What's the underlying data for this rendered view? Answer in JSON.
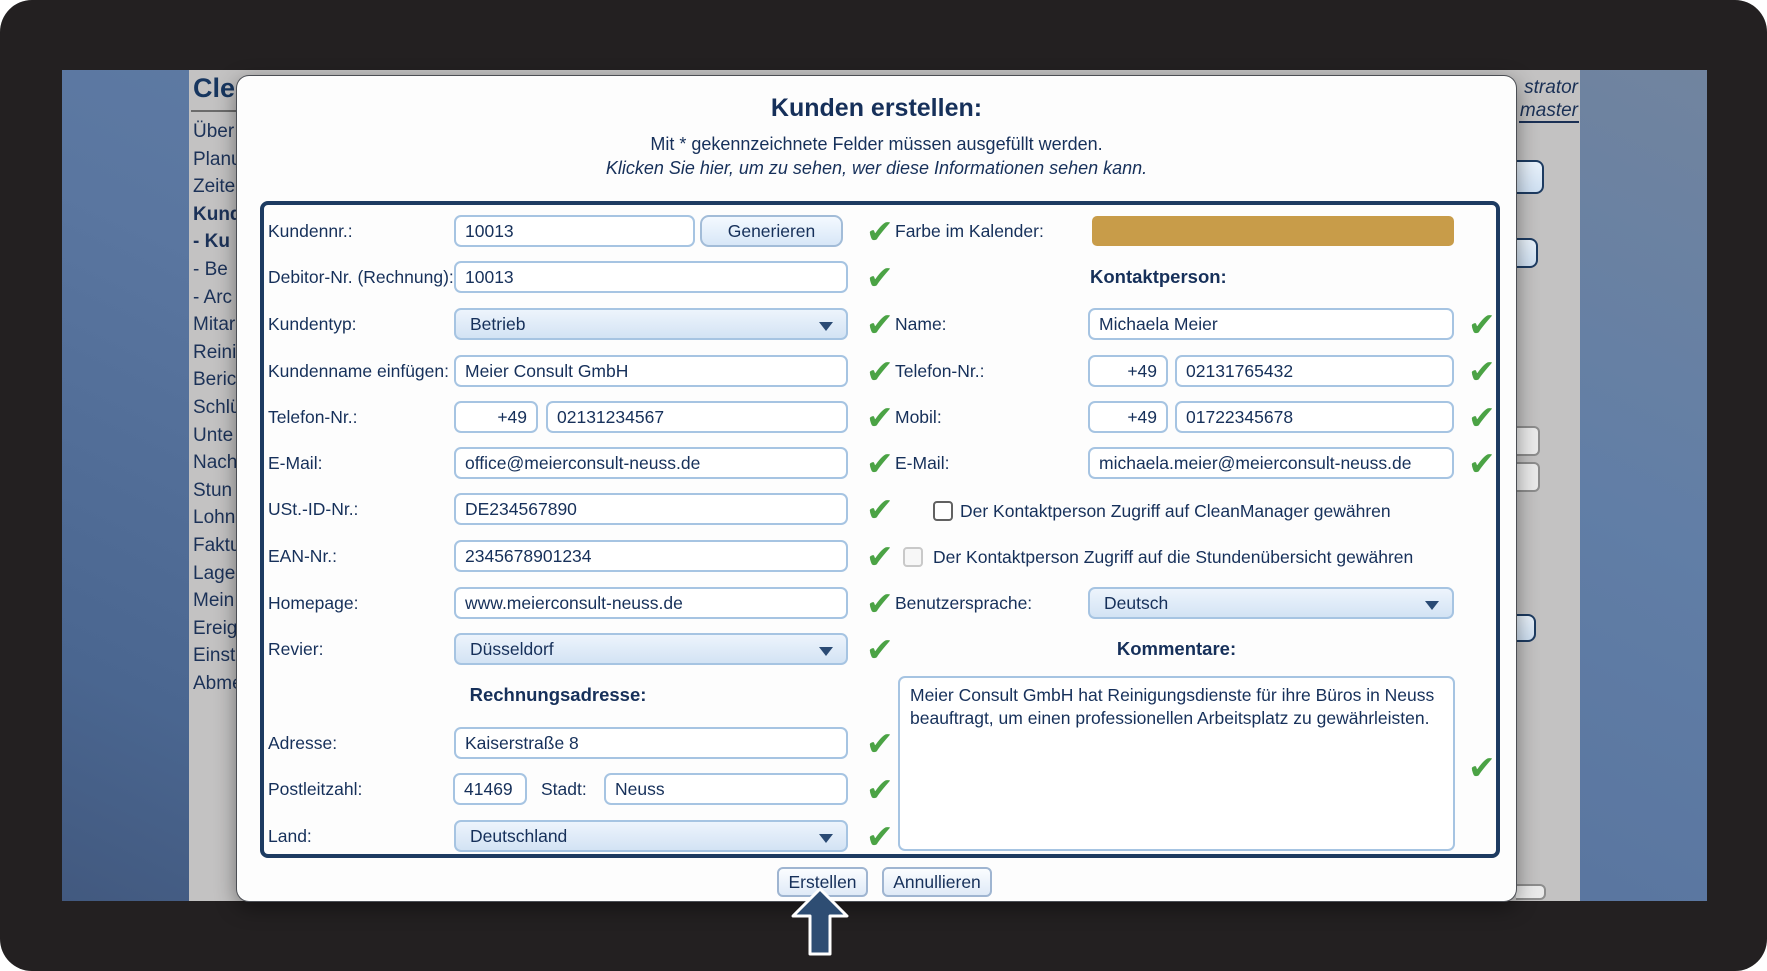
{
  "colors": {
    "calendar_swatch": "#c89c49",
    "check_green": "#4ba345",
    "navy_text": "#16305a"
  },
  "page": {
    "logo_fragment": "Cle",
    "top_right_fragments": [
      "strator",
      "master"
    ],
    "sidebar_items": [
      {
        "label": "Über",
        "bold": false
      },
      {
        "label": "Planu",
        "bold": false
      },
      {
        "label": "Zeite",
        "bold": false
      },
      {
        "label": "Kund",
        "bold": true
      },
      {
        "label": "- Ku",
        "bold": true
      },
      {
        "label": "- Be",
        "bold": false
      },
      {
        "label": "- Arc",
        "bold": false
      },
      {
        "label": "Mitar",
        "bold": false
      },
      {
        "label": "Reini",
        "bold": false
      },
      {
        "label": "Beric",
        "bold": false
      },
      {
        "label": "Schlü",
        "bold": false
      },
      {
        "label": "Unte",
        "bold": false
      },
      {
        "label": "Nach",
        "bold": false
      },
      {
        "label": "Stun",
        "bold": false
      },
      {
        "label": "Lohn",
        "bold": false
      },
      {
        "label": "Faktu",
        "bold": false
      },
      {
        "label": "Lage",
        "bold": false
      },
      {
        "label": "Mein",
        "bold": false
      },
      {
        "label": "Ereig",
        "bold": false
      },
      {
        "label": "Einst",
        "bold": false
      },
      {
        "label": "Abme",
        "bold": false
      }
    ]
  },
  "modal": {
    "title": "Kunden erstellen:",
    "subtitle1": "Mit * gekennzeichnete Felder müssen ausgefüllt werden.",
    "subtitle2": "Klicken Sie hier, um zu sehen, wer diese Informationen sehen kann.",
    "left": {
      "kundennr": {
        "label": "Kundennr.:",
        "value": "10013",
        "button": "Generieren"
      },
      "debitor": {
        "label": "Debitor-Nr. (Rechnung):",
        "value": "10013"
      },
      "kundentyp": {
        "label": "Kundentyp:",
        "value": "Betrieb"
      },
      "kundenname": {
        "label": "Kundenname einfügen:",
        "value": "Meier Consult GmbH"
      },
      "telefon": {
        "label": "Telefon-Nr.:",
        "prefix": "+49",
        "value": "02131234567"
      },
      "email": {
        "label": "E-Mail:",
        "value": "office@meierconsult-neuss.de"
      },
      "ust_id": {
        "label": "USt.-ID-Nr.:",
        "value": "DE234567890"
      },
      "ean": {
        "label": "EAN-Nr.:",
        "value": "2345678901234"
      },
      "homepage": {
        "label": "Homepage:",
        "value": "www.meierconsult-neuss.de"
      },
      "revier": {
        "label": "Revier:",
        "value": "Düsseldorf"
      },
      "section_rechnungsadresse": "Rechnungsadresse:",
      "adresse": {
        "label": "Adresse:",
        "value": "Kaiserstraße 8"
      },
      "postleitzahl": {
        "label": "Postleitzahl:",
        "value": "41469"
      },
      "stadt": {
        "label": "Stadt:",
        "value": "Neuss"
      },
      "land": {
        "label": "Land:",
        "value": "Deutschland"
      }
    },
    "right": {
      "farbe": {
        "label": "Farbe im Kalender:",
        "color": "#c89c49"
      },
      "section_kontaktperson": "Kontaktperson:",
      "name": {
        "label": "Name:",
        "value": "Michaela Meier"
      },
      "telefon": {
        "label": "Telefon-Nr.:",
        "prefix": "+49",
        "value": "02131765432"
      },
      "mobil": {
        "label": "Mobil:",
        "prefix": "+49",
        "value": "01722345678"
      },
      "email": {
        "label": "E-Mail:",
        "value": "michaela.meier@meierconsult-neuss.de"
      },
      "checkbox_cleanmanager": {
        "label": "Der Kontaktperson Zugriff auf CleanManager gewähren",
        "checked": false
      },
      "checkbox_stunden": {
        "label": "Der Kontaktperson Zugriff auf die Stundenübersicht gewähren",
        "checked": false
      },
      "benutzersprache": {
        "label": "Benutzersprache:",
        "value": "Deutsch"
      },
      "section_kommentare": "Kommentare:",
      "kommentare_value": "Meier Consult GmbH hat Reinigungsdienste für ihre Büros in Neuss beauftragt, um einen professionellen Arbeitsplatz zu gewährleisten."
    },
    "buttons": {
      "create": "Erstellen",
      "cancel": "Annullieren"
    }
  }
}
